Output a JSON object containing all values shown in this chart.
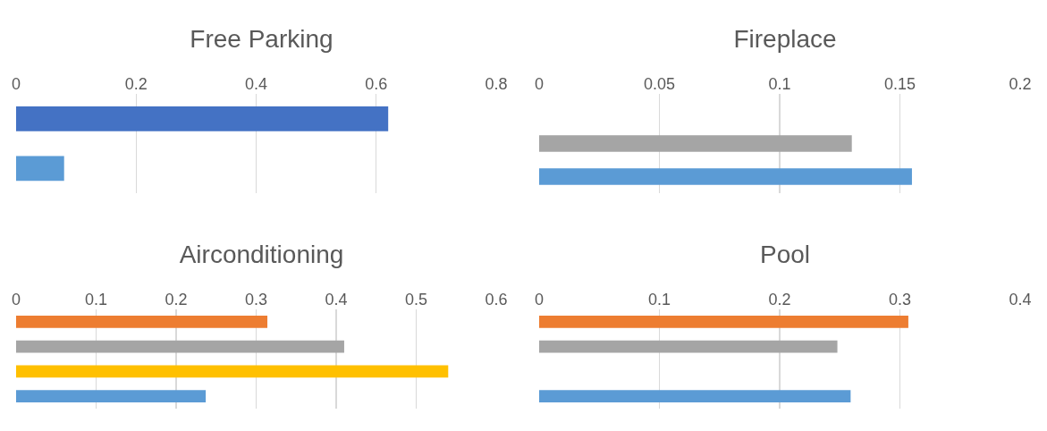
{
  "chart_data": [
    {
      "type": "bar",
      "orientation": "horizontal",
      "title": "Free Parking",
      "categories": [
        null,
        null
      ],
      "values": [
        0.62,
        0.08
      ],
      "colors": [
        "#4472c4",
        "#5b9bd5"
      ],
      "xlim": [
        0,
        0.8
      ],
      "xticks": [
        0,
        0.2,
        0.4,
        0.6,
        0.8
      ],
      "grid": "x",
      "tick_labels": "x"
    },
    {
      "type": "bar",
      "orientation": "horizontal",
      "title": "Fireplace",
      "categories": [
        null,
        null,
        null
      ],
      "values": [
        null,
        0.13,
        0.155
      ],
      "colors": [
        "#ed7d31",
        "#a5a5a5",
        "#5b9bd5"
      ],
      "xlim": [
        0,
        0.2
      ],
      "xticks": [
        0,
        0.05,
        0.1,
        0.15,
        0.2
      ],
      "grid": "x",
      "tick_labels": "x"
    },
    {
      "type": "bar",
      "orientation": "horizontal",
      "title": "Airconditioning",
      "categories": [
        null,
        null,
        null,
        null
      ],
      "values": [
        0.314,
        0.41,
        0.54,
        0.237
      ],
      "colors": [
        "#ed7d31",
        "#a5a5a5",
        "#ffc000",
        "#5b9bd5"
      ],
      "xlim": [
        0,
        0.6
      ],
      "xticks": [
        0,
        0.1,
        0.2,
        0.3,
        0.4,
        0.5,
        0.6
      ],
      "grid": "x",
      "tick_labels": "x"
    },
    {
      "type": "bar",
      "orientation": "horizontal",
      "title": "Pool",
      "categories": [
        null,
        null,
        null,
        null
      ],
      "values": [
        0.307,
        0.248,
        null,
        0.259
      ],
      "colors": [
        "#ed7d31",
        "#a5a5a5",
        "#ffc000",
        "#5b9bd5"
      ],
      "xlim": [
        0,
        0.4
      ],
      "xticks": [
        0,
        0.1,
        0.2,
        0.3,
        0.4
      ],
      "grid": "x",
      "tick_labels": "x"
    }
  ]
}
